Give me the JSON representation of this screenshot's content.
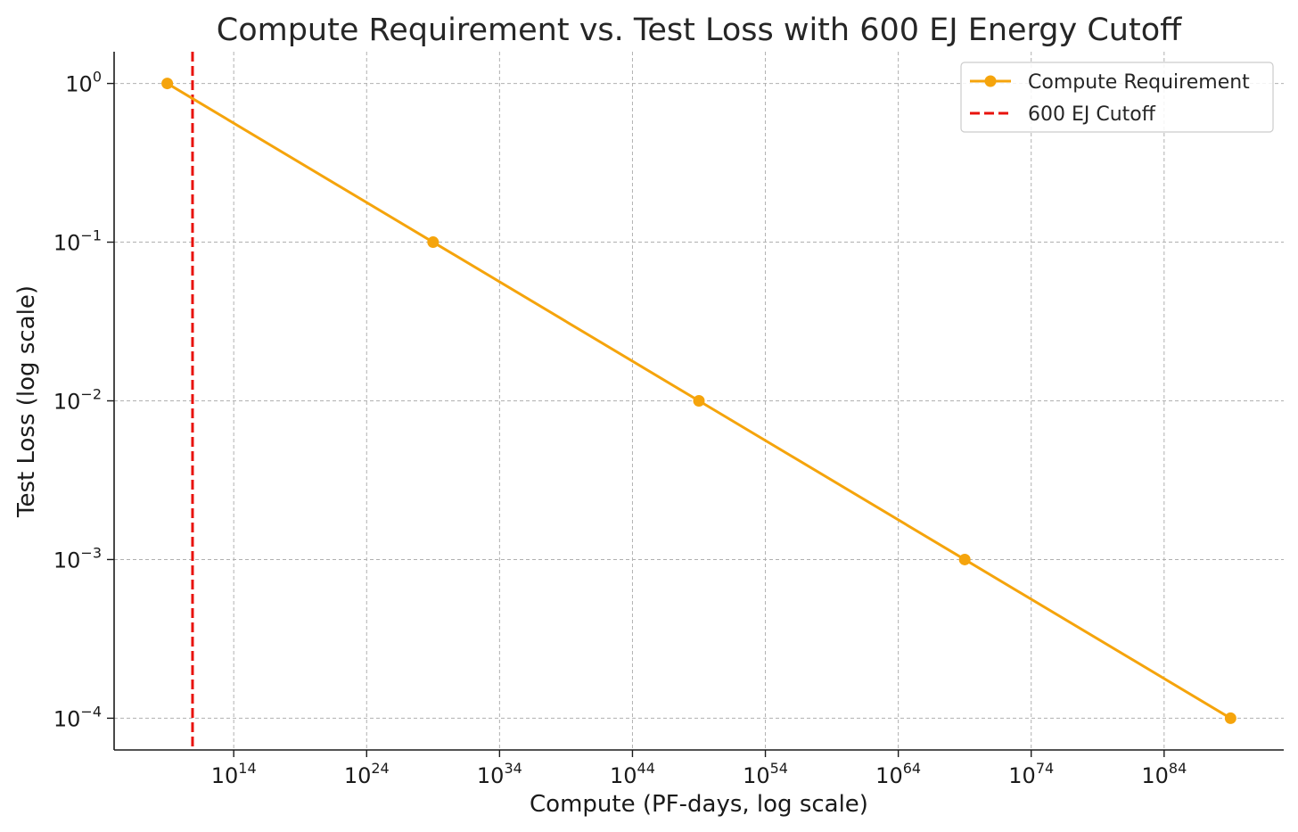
{
  "chart_data": {
    "type": "line",
    "title": "Compute Requirement vs. Test Loss with 600 EJ Energy Cutoff",
    "xlabel": "Compute (PF-days, log scale)",
    "ylabel": "Test Loss (log scale)",
    "xscale": "log",
    "yscale": "log",
    "xlim_log10": [
      5,
      93
    ],
    "ylim_log10": [
      -4.2,
      0.2
    ],
    "x_ticks": [
      {
        "base": "10",
        "exp": "14",
        "log10": 14
      },
      {
        "base": "10",
        "exp": "24",
        "log10": 24
      },
      {
        "base": "10",
        "exp": "34",
        "log10": 34
      },
      {
        "base": "10",
        "exp": "44",
        "log10": 44
      },
      {
        "base": "10",
        "exp": "54",
        "log10": 54
      },
      {
        "base": "10",
        "exp": "64",
        "log10": 64
      },
      {
        "base": "10",
        "exp": "74",
        "log10": 74
      },
      {
        "base": "10",
        "exp": "84",
        "log10": 84
      }
    ],
    "y_ticks": [
      {
        "base": "10",
        "exp": "0",
        "log10": 0
      },
      {
        "base": "10",
        "exp": "−1",
        "log10": -1
      },
      {
        "base": "10",
        "exp": "−2",
        "log10": -2
      },
      {
        "base": "10",
        "exp": "−3",
        "log10": -3
      },
      {
        "base": "10",
        "exp": "−4",
        "log10": -4
      }
    ],
    "grid": true,
    "legend_position": "top-right",
    "series": [
      {
        "name": "Compute Requirement",
        "color": "#f5a40c",
        "marker": "circle",
        "x_log10": [
          9,
          29,
          49,
          69,
          89
        ],
        "y": [
          1,
          0.1,
          0.01,
          0.001,
          0.0001
        ]
      }
    ],
    "reference_lines": [
      {
        "name": "600 EJ Cutoff",
        "orientation": "vertical",
        "x_log10": 10.9,
        "color": "#e8120c",
        "style": "dashed"
      }
    ]
  }
}
